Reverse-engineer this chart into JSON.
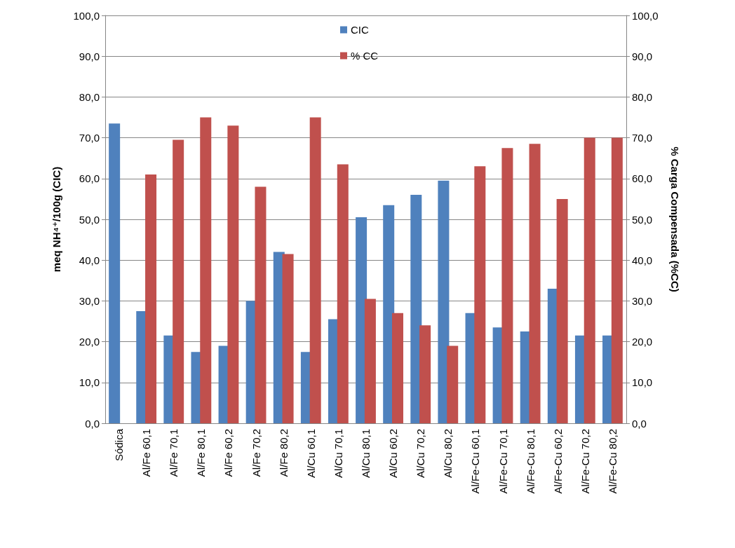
{
  "chart_data": {
    "type": "bar",
    "categories": [
      "Sódica",
      "Al/Fe 60,1",
      "Al/Fe 70,1",
      "Al/Fe 80,1",
      "Al/Fe 60,2",
      "Al/Fe 70,2",
      "Al/Fe 80,2",
      "Al/Cu 60,1",
      "Al/Cu 70,1",
      "Al/Cu 80,1",
      "Al/Cu 60,2",
      "Al/Cu 70,2",
      "Al/Cu 80,2",
      "Al/Fe-Cu 60,1",
      "Al/Fe-Cu 70,1",
      "Al/Fe-Cu 80,1",
      "Al/Fe-Cu 60,2",
      "Al/Fe-Cu 70,2",
      "Al/Fe-Cu 80,2"
    ],
    "series": [
      {
        "name": "CIC",
        "color": "#4f81bd",
        "values": [
          73.5,
          27.5,
          21.5,
          17.5,
          19,
          30,
          42,
          17.5,
          25.5,
          50.5,
          53.5,
          56,
          59.5,
          27,
          23.5,
          22.5,
          33,
          21.5,
          21.5
        ]
      },
      {
        "name": "% CC",
        "color": "#c0504d",
        "axis": "y2",
        "values": [
          null,
          61,
          69.5,
          75,
          73,
          58,
          41.5,
          75,
          63.5,
          30.5,
          27,
          24,
          19,
          63,
          67.5,
          68.5,
          55,
          70,
          70
        ]
      }
    ],
    "ylabel": "meq NH⁴⁺/100g (CIC)",
    "y2label": "% Carga Compensada (%CC)",
    "ylim": [
      0,
      100
    ],
    "yticks": [
      {
        "value": 0,
        "label": "0,0"
      },
      {
        "value": 10,
        "label": "10,0"
      },
      {
        "value": 20,
        "label": "20,0"
      },
      {
        "value": 30,
        "label": "30,0"
      },
      {
        "value": 40,
        "label": "40,0"
      },
      {
        "value": 50,
        "label": "50,0"
      },
      {
        "value": 60,
        "label": "60,0"
      },
      {
        "value": 70,
        "label": "70,0"
      },
      {
        "value": 80,
        "label": "80,0"
      },
      {
        "value": 90,
        "label": "90,0"
      },
      {
        "value": 100,
        "label": "100,0"
      }
    ],
    "y2lim": [
      0,
      100
    ],
    "y2ticks": [
      {
        "value": 0,
        "label": "0,0"
      },
      {
        "value": 10,
        "label": "10,0"
      },
      {
        "value": 20,
        "label": "20,0"
      },
      {
        "value": 30,
        "label": "30,0"
      },
      {
        "value": 40,
        "label": "40,0"
      },
      {
        "value": 50,
        "label": "50,0"
      },
      {
        "value": 60,
        "label": "60,0"
      },
      {
        "value": 70,
        "label": "70,0"
      },
      {
        "value": 80,
        "label": "80,0"
      },
      {
        "value": 90,
        "label": "90,0"
      },
      {
        "value": 100,
        "label": "100,0"
      }
    ],
    "grid": "y",
    "legend": "top"
  }
}
